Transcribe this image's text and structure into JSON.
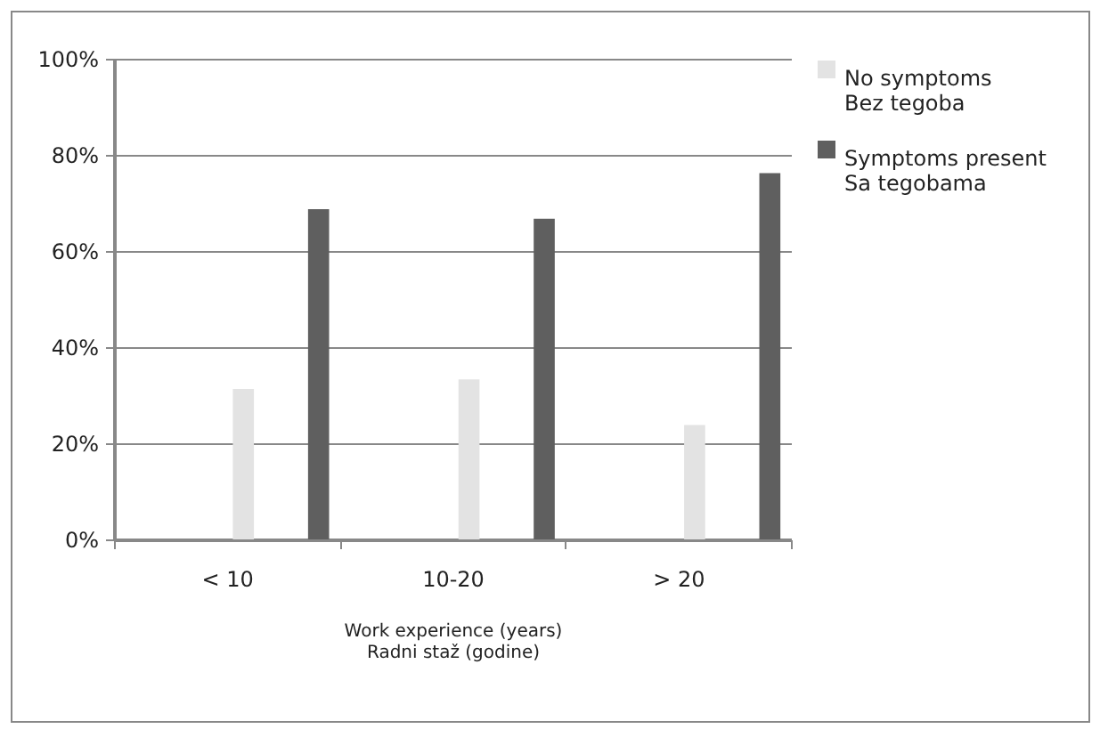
{
  "chart_data": {
    "type": "bar",
    "xlabel": "Work experience (years)\nRadni staž (godine)",
    "categories": [
      "< 10",
      "10-20",
      "> 20"
    ],
    "series": [
      {
        "name": "No symptoms\nBez tegoba",
        "color": "#e3e3e3",
        "values": [
          31.3,
          33.3,
          23.8
        ]
      },
      {
        "name": "Symptoms present\nSa tegobama",
        "color": "#5f5f5f",
        "values": [
          68.7,
          66.7,
          76.2
        ]
      }
    ],
    "ylim": [
      0,
      100
    ],
    "yticks": [
      {
        "value": 0,
        "label": "0%"
      },
      {
        "value": 20,
        "label": "20%"
      },
      {
        "value": 40,
        "label": "40%"
      },
      {
        "value": 60,
        "label": "60%"
      },
      {
        "value": 80,
        "label": "80%"
      },
      {
        "value": 100,
        "label": "100%"
      }
    ],
    "grid": "y",
    "legend": "right"
  }
}
